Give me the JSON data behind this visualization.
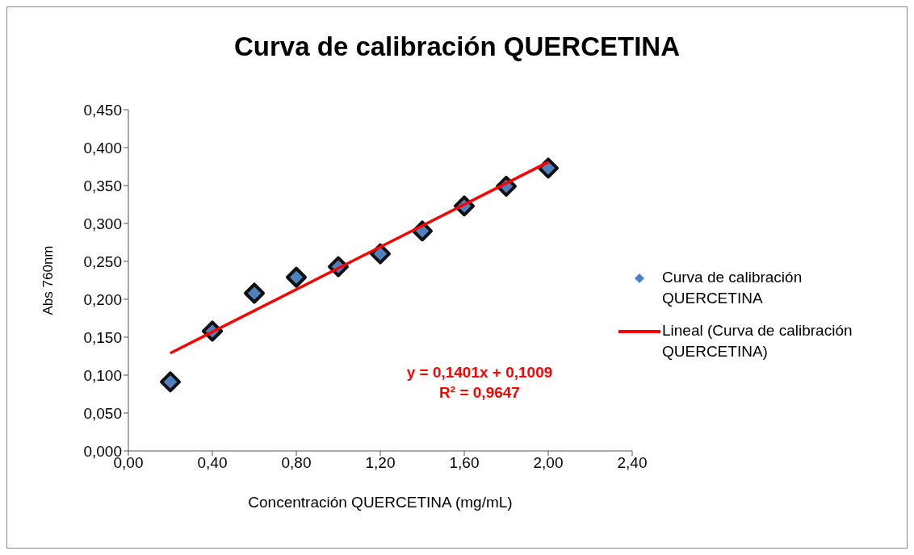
{
  "chart_data": {
    "type": "scatter",
    "title": "Curva de calibración QUERCETINA",
    "xlabel": "Concentración QUERCETINA  (mg/mL)",
    "ylabel": "Abs 760nm",
    "series": [
      {
        "name": "Curva de calibración QUERCETINA",
        "color": "#4f81bd",
        "marker": "diamond",
        "x": [
          0.2,
          0.4,
          0.6,
          0.8,
          1.0,
          1.2,
          1.4,
          1.6,
          1.8,
          2.0
        ],
        "values": [
          0.091,
          0.158,
          0.208,
          0.229,
          0.243,
          0.26,
          0.29,
          0.323,
          0.349,
          0.373
        ]
      },
      {
        "type": "line",
        "name": "Lineal (Curva de calibración QUERCETINA)",
        "color": "#ff0000",
        "line_style": "solid",
        "x": [
          0.2,
          2.0
        ],
        "values": [
          0.129,
          0.381
        ]
      }
    ],
    "xlim": [
      0,
      2.4
    ],
    "xticks": [
      {
        "value": 0,
        "label": "0,00"
      },
      {
        "value": 0.4,
        "label": "0,40"
      },
      {
        "value": 0.8,
        "label": "0,80"
      },
      {
        "value": 1.2,
        "label": "1,20"
      },
      {
        "value": 1.6,
        "label": "1,60"
      },
      {
        "value": 2.0,
        "label": "2,00"
      },
      {
        "value": 2.4,
        "label": "2,40"
      }
    ],
    "ylim": [
      0,
      0.45
    ],
    "yticks": [
      {
        "value": 0,
        "label": "0,000"
      },
      {
        "value": 0.05,
        "label": "0,050"
      },
      {
        "value": 0.1,
        "label": "0,100"
      },
      {
        "value": 0.15,
        "label": "0,150"
      },
      {
        "value": 0.2,
        "label": "0,200"
      },
      {
        "value": 0.25,
        "label": "0,250"
      },
      {
        "value": 0.3,
        "label": "0,300"
      },
      {
        "value": 0.35,
        "label": "0,350"
      },
      {
        "value": 0.4,
        "label": "0,400"
      },
      {
        "value": 0.45,
        "label": "0,450"
      }
    ],
    "grid": false,
    "legend": "right",
    "annotations": [
      "y = 0,1401x + 0,1009",
      "R² = 0,9647"
    ]
  }
}
